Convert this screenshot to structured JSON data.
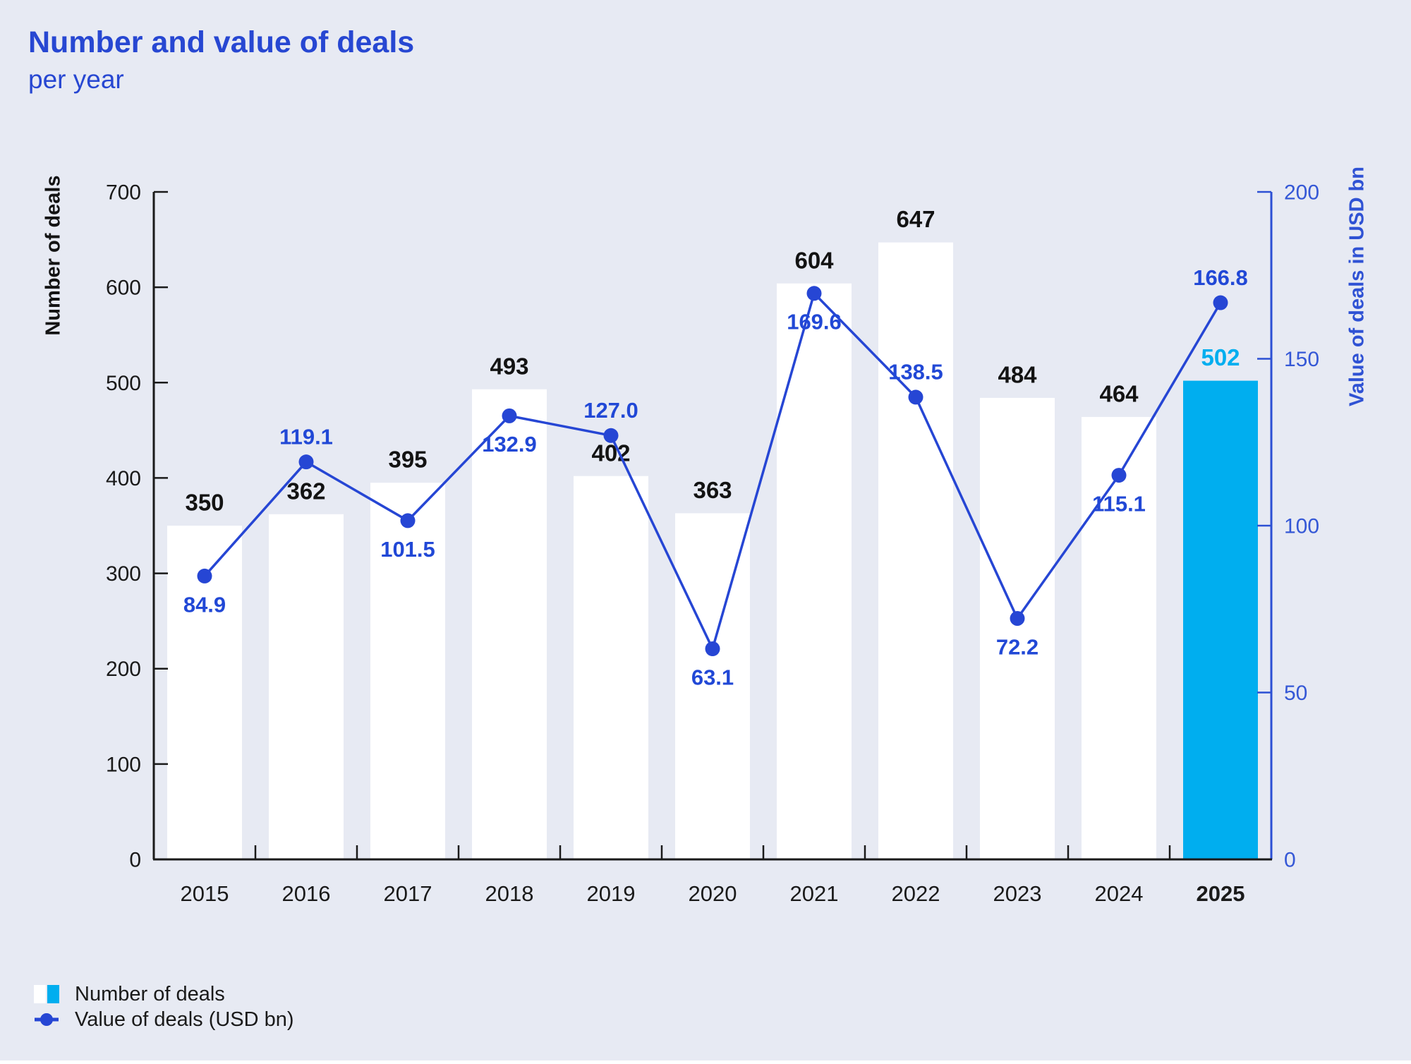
{
  "title": "Number and value of deals",
  "subtitle": "per year",
  "chart_data": {
    "type": "bar+line combo",
    "categories": [
      "2015",
      "2016",
      "2017",
      "2018",
      "2019",
      "2020",
      "2021",
      "2022",
      "2023",
      "2024",
      "2025"
    ],
    "series": [
      {
        "name": "Number of deals",
        "type": "bar",
        "axis": "left",
        "values": [
          350,
          362,
          395,
          493,
          402,
          363,
          604,
          647,
          484,
          464,
          502
        ],
        "value_labels": [
          "350",
          "362",
          "395",
          "493",
          "402",
          "363",
          "604",
          "647",
          "484",
          "464",
          "502"
        ]
      },
      {
        "name": "Value of deals (USD bn)",
        "type": "line",
        "axis": "right",
        "values": [
          84.9,
          119.1,
          101.5,
          132.9,
          127.0,
          63.1,
          169.6,
          138.5,
          72.2,
          115.1,
          166.8
        ],
        "value_labels": [
          "84.9",
          "119.1",
          "101.5",
          "132.9",
          "127.0",
          "63.1",
          "169.6",
          "138.5",
          "72.2",
          "115.1",
          "166.8"
        ],
        "label_positions": [
          "below",
          "above",
          "below",
          "below",
          "above",
          "below",
          "below",
          "above",
          "below",
          "below",
          "above"
        ]
      }
    ],
    "highlight_index": 10,
    "left_axis": {
      "title": "Number of deals",
      "min": 0,
      "max": 700,
      "step": 100,
      "tick_labels": [
        "0",
        "100",
        "200",
        "300",
        "400",
        "500",
        "600",
        "700"
      ]
    },
    "right_axis": {
      "title": "Value of deals in USD bn",
      "min": 0,
      "max": 200,
      "step": 50,
      "tick_labels": [
        "0",
        "50",
        "100",
        "150",
        "200"
      ]
    },
    "legend_position": "bottom-left",
    "grid": false,
    "colors": {
      "background": "#e7eaf3",
      "bar": "#ffffff",
      "bar_highlight": "#00aeef",
      "bar_label": "#131313",
      "bar_label_highlight": "#00aeef",
      "line": "#2646d4",
      "marker": "#2646d4",
      "value_label": "#2148d6",
      "left_axis_line": "#1a1a1a",
      "left_tick_text": "#1a1a1a",
      "right_axis_line": "#2c50d4",
      "right_tick_text": "#3558d6",
      "year_text": "#1a1a1a",
      "title_text": "#2747d2"
    }
  },
  "legend": [
    {
      "label": "Number of deals"
    },
    {
      "label": "Value of deals (USD bn)"
    }
  ]
}
